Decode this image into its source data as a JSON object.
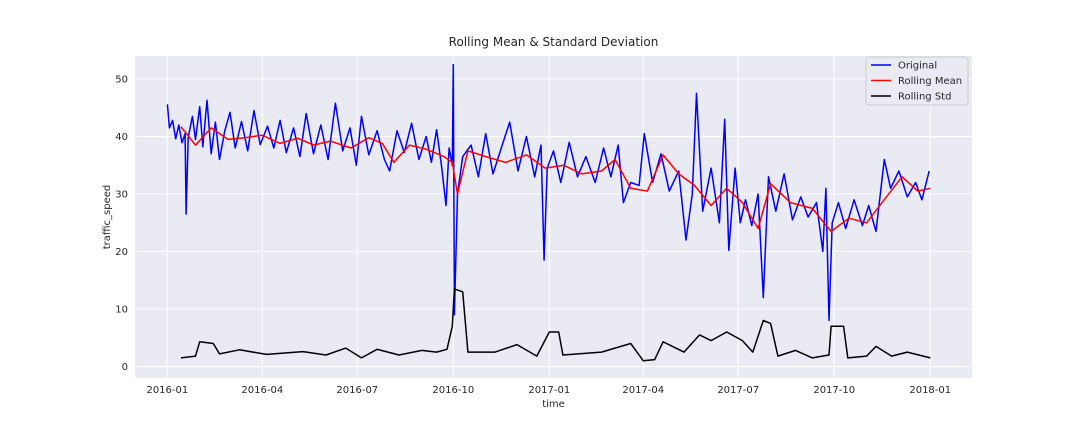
{
  "chart_data": {
    "type": "line",
    "title": "Rolling Mean & Standard Deviation",
    "xlabel": "time",
    "ylabel": "traffic_speed",
    "xlim": [
      "2015-12-01",
      "2018-02-10"
    ],
    "ylim": [
      -2,
      54
    ],
    "x_ticks": [
      "2016-01",
      "2016-04",
      "2016-07",
      "2016-10",
      "2017-01",
      "2017-04",
      "2017-07",
      "2017-10",
      "2018-01"
    ],
    "y_ticks": [
      0,
      10,
      20,
      30,
      40,
      50
    ],
    "grid": true,
    "legend_position": "top-right",
    "series": [
      {
        "name": "Original",
        "color": "#0000ff",
        "points": [
          [
            "2016-01-01",
            45.6
          ],
          [
            "2016-01-03",
            41.5
          ],
          [
            "2016-01-06",
            42.8
          ],
          [
            "2016-01-09",
            39.6
          ],
          [
            "2016-01-12",
            42.0
          ],
          [
            "2016-01-15",
            38.9
          ],
          [
            "2016-01-18",
            40.5
          ],
          [
            "2016-01-19",
            26.5
          ],
          [
            "2016-01-21",
            39.8
          ],
          [
            "2016-01-25",
            43.5
          ],
          [
            "2016-01-28",
            39.5
          ],
          [
            "2016-02-01",
            45.2
          ],
          [
            "2016-02-04",
            38.2
          ],
          [
            "2016-02-08",
            46.3
          ],
          [
            "2016-02-12",
            37.0
          ],
          [
            "2016-02-16",
            42.5
          ],
          [
            "2016-02-20",
            36.0
          ],
          [
            "2016-02-25",
            41.0
          ],
          [
            "2016-03-01",
            44.2
          ],
          [
            "2016-03-06",
            38.0
          ],
          [
            "2016-03-12",
            42.6
          ],
          [
            "2016-03-18",
            37.5
          ],
          [
            "2016-03-24",
            44.5
          ],
          [
            "2016-03-30",
            38.6
          ],
          [
            "2016-04-06",
            41.8
          ],
          [
            "2016-04-12",
            38.0
          ],
          [
            "2016-04-18",
            42.8
          ],
          [
            "2016-04-24",
            37.2
          ],
          [
            "2016-05-01",
            41.5
          ],
          [
            "2016-05-07",
            36.5
          ],
          [
            "2016-05-13",
            44.0
          ],
          [
            "2016-05-20",
            37.0
          ],
          [
            "2016-05-27",
            42.0
          ],
          [
            "2016-06-03",
            36.0
          ],
          [
            "2016-06-10",
            45.8
          ],
          [
            "2016-06-17",
            37.5
          ],
          [
            "2016-06-24",
            41.5
          ],
          [
            "2016-06-30",
            35.0
          ],
          [
            "2016-07-05",
            43.5
          ],
          [
            "2016-07-12",
            36.8
          ],
          [
            "2016-07-20",
            41.0
          ],
          [
            "2016-07-27",
            36.0
          ],
          [
            "2016-08-01",
            34.0
          ],
          [
            "2016-08-08",
            41.0
          ],
          [
            "2016-08-15",
            37.2
          ],
          [
            "2016-08-22",
            42.3
          ],
          [
            "2016-08-29",
            36.0
          ],
          [
            "2016-09-05",
            40.0
          ],
          [
            "2016-09-10",
            35.5
          ],
          [
            "2016-09-15",
            41.2
          ],
          [
            "2016-09-20",
            34.5
          ],
          [
            "2016-09-24",
            28.0
          ],
          [
            "2016-09-27",
            38.0
          ],
          [
            "2016-09-30",
            35.0
          ],
          [
            "2016-10-01",
            52.5
          ],
          [
            "2016-10-02",
            9.0
          ],
          [
            "2016-10-05",
            30.0
          ],
          [
            "2016-10-10",
            36.5
          ],
          [
            "2016-10-18",
            38.5
          ],
          [
            "2016-10-25",
            33.0
          ],
          [
            "2016-11-01",
            40.5
          ],
          [
            "2016-11-08",
            33.5
          ],
          [
            "2016-11-16",
            38.0
          ],
          [
            "2016-11-24",
            42.5
          ],
          [
            "2016-12-02",
            34.0
          ],
          [
            "2016-12-10",
            40.0
          ],
          [
            "2016-12-18",
            33.0
          ],
          [
            "2016-12-24",
            38.5
          ],
          [
            "2016-12-27",
            18.5
          ],
          [
            "2016-12-30",
            34.5
          ],
          [
            "2017-01-05",
            37.5
          ],
          [
            "2017-01-12",
            32.0
          ],
          [
            "2017-01-20",
            39.0
          ],
          [
            "2017-01-28",
            33.0
          ],
          [
            "2017-02-05",
            36.5
          ],
          [
            "2017-02-14",
            32.0
          ],
          [
            "2017-02-22",
            38.0
          ],
          [
            "2017-03-01",
            33.0
          ],
          [
            "2017-03-08",
            38.5
          ],
          [
            "2017-03-13",
            28.5
          ],
          [
            "2017-03-20",
            32.0
          ],
          [
            "2017-03-28",
            31.5
          ],
          [
            "2017-04-02",
            40.5
          ],
          [
            "2017-04-10",
            32.0
          ],
          [
            "2017-04-18",
            37.0
          ],
          [
            "2017-04-26",
            30.5
          ],
          [
            "2017-05-05",
            34.0
          ],
          [
            "2017-05-12",
            22.0
          ],
          [
            "2017-05-18",
            30.0
          ],
          [
            "2017-05-22",
            47.5
          ],
          [
            "2017-05-28",
            27.0
          ],
          [
            "2017-06-05",
            34.5
          ],
          [
            "2017-06-13",
            25.0
          ],
          [
            "2017-06-18",
            43.0
          ],
          [
            "2017-06-22",
            20.2
          ],
          [
            "2017-06-28",
            34.5
          ],
          [
            "2017-07-03",
            25.0
          ],
          [
            "2017-07-08",
            29.0
          ],
          [
            "2017-07-14",
            24.5
          ],
          [
            "2017-07-20",
            30.0
          ],
          [
            "2017-07-25",
            12.0
          ],
          [
            "2017-07-30",
            33.0
          ],
          [
            "2017-08-06",
            27.0
          ],
          [
            "2017-08-14",
            33.5
          ],
          [
            "2017-08-22",
            25.5
          ],
          [
            "2017-08-30",
            29.5
          ],
          [
            "2017-09-06",
            26.0
          ],
          [
            "2017-09-14",
            28.5
          ],
          [
            "2017-09-20",
            20.0
          ],
          [
            "2017-09-23",
            31.0
          ],
          [
            "2017-09-26",
            8.0
          ],
          [
            "2017-09-29",
            25.0
          ],
          [
            "2017-10-05",
            28.5
          ],
          [
            "2017-10-12",
            24.0
          ],
          [
            "2017-10-20",
            29.0
          ],
          [
            "2017-10-28",
            24.5
          ],
          [
            "2017-11-03",
            28.0
          ],
          [
            "2017-11-10",
            23.5
          ],
          [
            "2017-11-18",
            36.0
          ],
          [
            "2017-11-24",
            31.0
          ],
          [
            "2017-12-02",
            34.0
          ],
          [
            "2017-12-10",
            29.5
          ],
          [
            "2017-12-18",
            32.0
          ],
          [
            "2017-12-24",
            29.0
          ],
          [
            "2017-12-31",
            34.0
          ]
        ]
      },
      {
        "name": "Rolling Mean",
        "color": "#ff0000",
        "points": [
          [
            "2016-01-14",
            41.7
          ],
          [
            "2016-01-28",
            38.5
          ],
          [
            "2016-02-12",
            41.5
          ],
          [
            "2016-02-28",
            39.5
          ],
          [
            "2016-03-15",
            39.8
          ],
          [
            "2016-04-01",
            40.2
          ],
          [
            "2016-04-18",
            38.8
          ],
          [
            "2016-05-05",
            39.7
          ],
          [
            "2016-05-20",
            38.5
          ],
          [
            "2016-06-05",
            39.2
          ],
          [
            "2016-06-25",
            38.0
          ],
          [
            "2016-07-12",
            39.8
          ],
          [
            "2016-07-25",
            38.8
          ],
          [
            "2016-08-05",
            35.5
          ],
          [
            "2016-08-20",
            38.5
          ],
          [
            "2016-09-05",
            37.8
          ],
          [
            "2016-09-22",
            36.5
          ],
          [
            "2016-09-30",
            35.5
          ],
          [
            "2016-10-05",
            30.0
          ],
          [
            "2016-10-15",
            37.5
          ],
          [
            "2016-11-01",
            36.5
          ],
          [
            "2016-11-20",
            35.5
          ],
          [
            "2016-12-10",
            36.8
          ],
          [
            "2016-12-28",
            34.5
          ],
          [
            "2017-01-15",
            35.0
          ],
          [
            "2017-02-01",
            33.5
          ],
          [
            "2017-02-20",
            34.0
          ],
          [
            "2017-03-05",
            36.0
          ],
          [
            "2017-03-20",
            31.0
          ],
          [
            "2017-04-05",
            30.5
          ],
          [
            "2017-04-20",
            36.8
          ],
          [
            "2017-05-05",
            33.5
          ],
          [
            "2017-05-20",
            31.5
          ],
          [
            "2017-06-05",
            28.0
          ],
          [
            "2017-06-20",
            31.0
          ],
          [
            "2017-07-05",
            28.5
          ],
          [
            "2017-07-20",
            24.0
          ],
          [
            "2017-08-01",
            31.8
          ],
          [
            "2017-08-20",
            28.5
          ],
          [
            "2017-09-10",
            27.5
          ],
          [
            "2017-09-28",
            23.5
          ],
          [
            "2017-10-15",
            25.8
          ],
          [
            "2017-11-01",
            25.0
          ],
          [
            "2017-11-20",
            29.5
          ],
          [
            "2017-12-05",
            33.0
          ],
          [
            "2017-12-20",
            30.5
          ],
          [
            "2018-01-01",
            31.0
          ]
        ]
      },
      {
        "name": "Rolling Std",
        "color": "#000000",
        "points": [
          [
            "2016-01-14",
            1.5
          ],
          [
            "2016-01-28",
            1.8
          ],
          [
            "2016-02-01",
            4.3
          ],
          [
            "2016-02-14",
            4.0
          ],
          [
            "2016-02-20",
            2.2
          ],
          [
            "2016-03-10",
            2.9
          ],
          [
            "2016-04-05",
            2.1
          ],
          [
            "2016-05-10",
            2.6
          ],
          [
            "2016-06-01",
            2.0
          ],
          [
            "2016-06-20",
            3.2
          ],
          [
            "2016-07-05",
            1.5
          ],
          [
            "2016-07-20",
            3.0
          ],
          [
            "2016-08-10",
            2.0
          ],
          [
            "2016-09-01",
            2.8
          ],
          [
            "2016-09-15",
            2.5
          ],
          [
            "2016-09-25",
            3.0
          ],
          [
            "2016-09-30",
            7.0
          ],
          [
            "2016-10-02",
            13.5
          ],
          [
            "2016-10-10",
            13.0
          ],
          [
            "2016-10-15",
            2.5
          ],
          [
            "2016-11-10",
            2.5
          ],
          [
            "2016-12-01",
            3.8
          ],
          [
            "2016-12-20",
            1.8
          ],
          [
            "2017-01-01",
            6.0
          ],
          [
            "2017-01-10",
            6.0
          ],
          [
            "2017-01-14",
            2.0
          ],
          [
            "2017-02-20",
            2.5
          ],
          [
            "2017-03-20",
            4.0
          ],
          [
            "2017-04-01",
            1.0
          ],
          [
            "2017-04-12",
            1.2
          ],
          [
            "2017-04-20",
            4.3
          ],
          [
            "2017-05-10",
            2.5
          ],
          [
            "2017-05-25",
            5.5
          ],
          [
            "2017-06-05",
            4.5
          ],
          [
            "2017-06-20",
            6.0
          ],
          [
            "2017-07-05",
            4.5
          ],
          [
            "2017-07-15",
            2.5
          ],
          [
            "2017-07-25",
            8.0
          ],
          [
            "2017-08-01",
            7.5
          ],
          [
            "2017-08-08",
            1.8
          ],
          [
            "2017-08-25",
            2.8
          ],
          [
            "2017-09-10",
            1.5
          ],
          [
            "2017-09-26",
            2.0
          ],
          [
            "2017-09-28",
            7.0
          ],
          [
            "2017-10-10",
            7.0
          ],
          [
            "2017-10-14",
            1.5
          ],
          [
            "2017-11-01",
            1.8
          ],
          [
            "2017-11-10",
            3.5
          ],
          [
            "2017-11-25",
            1.8
          ],
          [
            "2017-12-10",
            2.5
          ],
          [
            "2018-01-01",
            1.5
          ]
        ]
      }
    ]
  }
}
